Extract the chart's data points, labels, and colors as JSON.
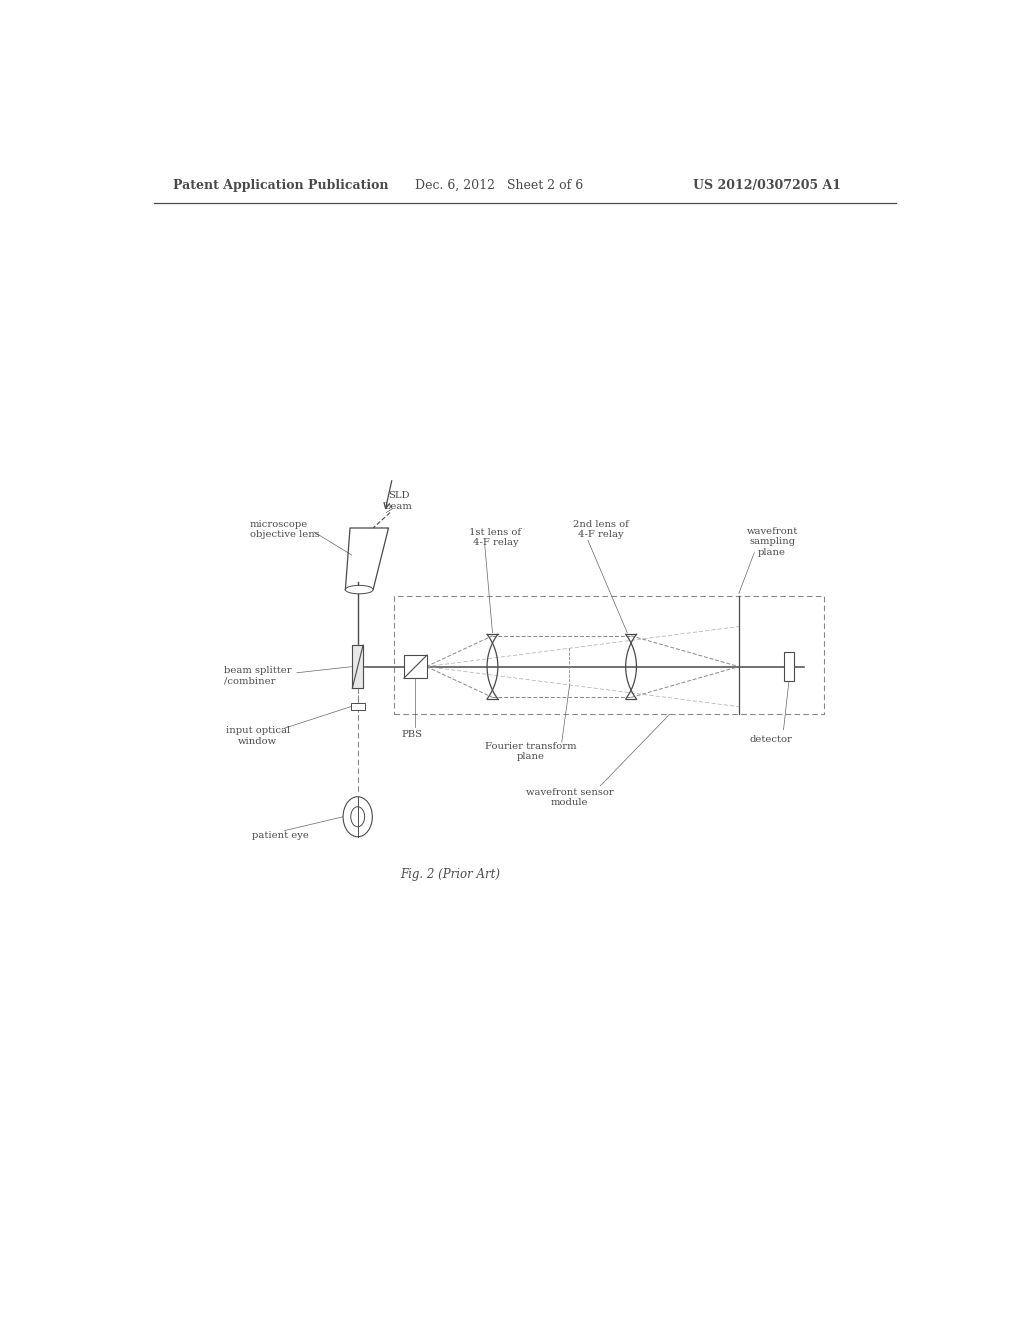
{
  "bg_color": "#ffffff",
  "line_color": "#4a4a4a",
  "text_color": "#4a4a4a",
  "header_left": "Patent Application Publication",
  "header_mid": "Dec. 6, 2012   Sheet 2 of 6",
  "header_right": "US 2012/0307205 A1",
  "caption": "Fig. 2 (Prior Art)",
  "label_microscope": "microscope\nobjective lens",
  "label_sld": "SLD\nbeam",
  "label_1st_lens": "1st lens of\n4-F relay",
  "label_2nd_lens": "2nd lens of\n4-F relay",
  "label_wsp": "wavefront\nsampling\nplane",
  "label_bs": "beam splitter\n/combiner",
  "label_iow": "input optical\nwindow",
  "label_pbs": "PBS",
  "label_ft": "Fourier transform\nplane",
  "label_det": "detector",
  "label_eye": "patient eye",
  "label_wsm": "wavefront sensor\nmodule"
}
